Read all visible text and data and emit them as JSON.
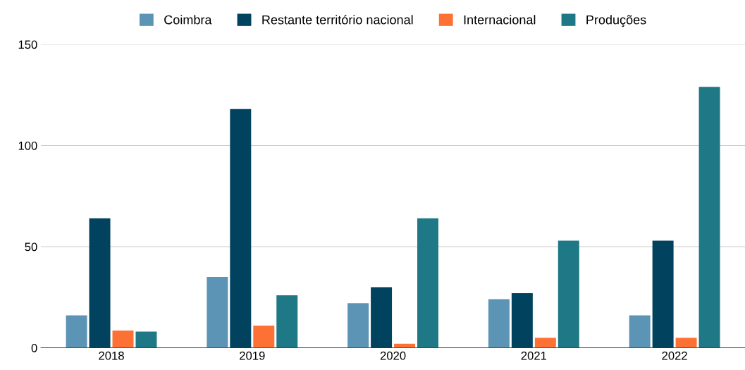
{
  "chart_data": {
    "type": "bar",
    "categories": [
      "2018",
      "2019",
      "2020",
      "2021",
      "2022"
    ],
    "series": [
      {
        "name": "Coimbra",
        "color": "#5b94b4",
        "values": [
          16,
          35,
          22,
          24,
          16
        ]
      },
      {
        "name": "Restante território nacional",
        "color": "#01425e",
        "values": [
          64,
          118,
          30,
          27,
          53
        ]
      },
      {
        "name": "Internacional",
        "color": "#fe7135",
        "values": [
          8.5,
          11,
          2,
          5,
          5
        ]
      },
      {
        "name": "Produções",
        "color": "#1e7885",
        "values": [
          8,
          26,
          64,
          53,
          129
        ]
      }
    ],
    "ylim": [
      0,
      150
    ],
    "yticks": [
      0,
      50,
      100,
      150
    ],
    "grid": "y",
    "legend": "top"
  }
}
